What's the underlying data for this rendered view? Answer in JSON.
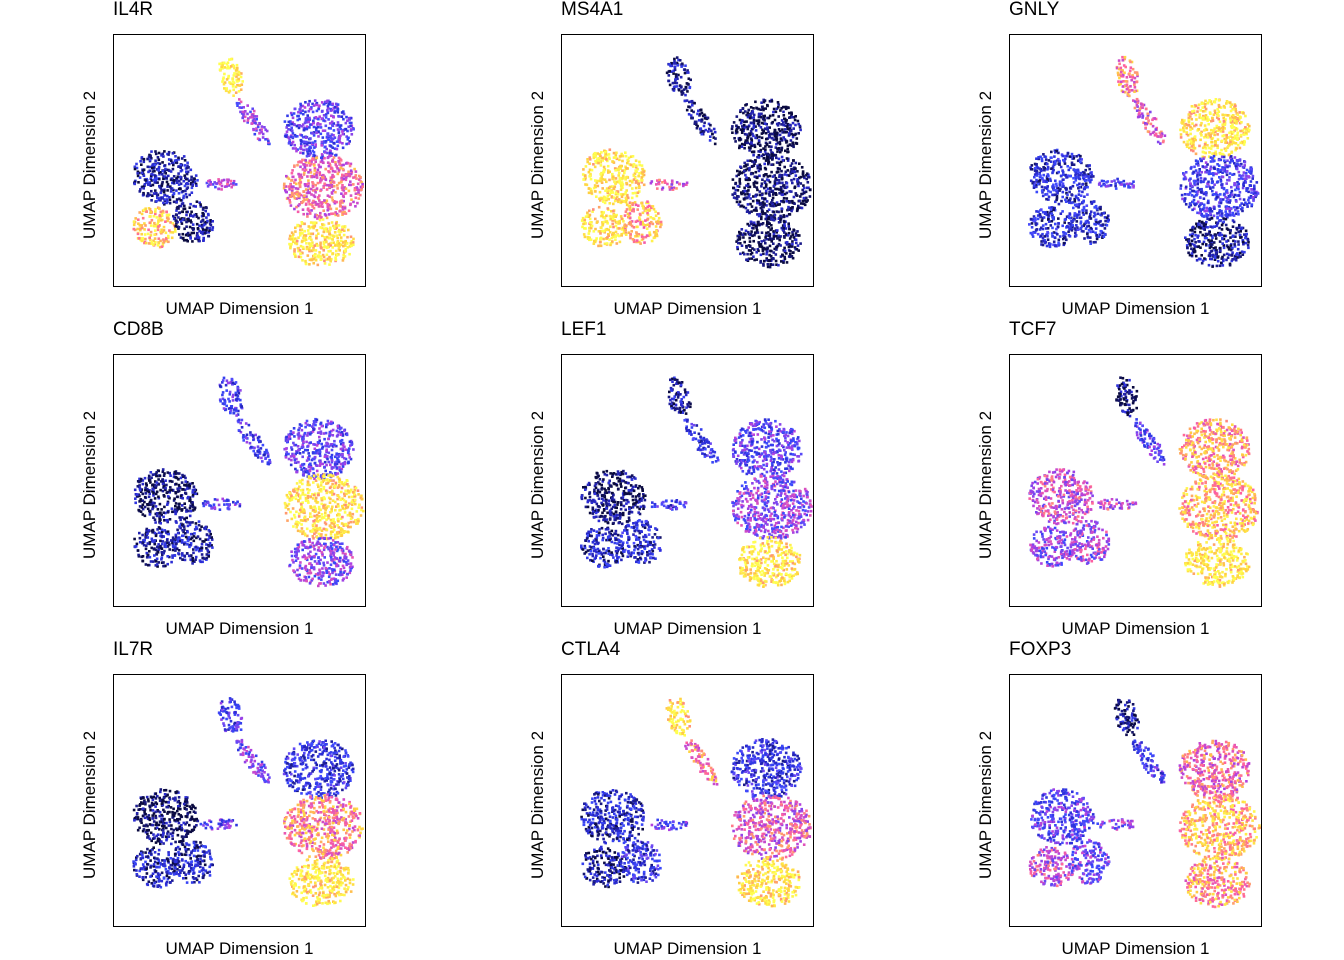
{
  "chart_data": [
    {
      "type": "scatter",
      "title": "IL4R",
      "xlabel": "UMAP Dimension 1",
      "ylabel": "UMAP Dimension 2",
      "grid": false,
      "colorscale": [
        "#0a0a40",
        "#2a2ad0",
        "#3c4cff",
        "#b040e0",
        "#ff60a0",
        "#ffd040",
        "#ffff50"
      ],
      "cluster_expression": {
        "top_left_lobe": 0.95,
        "top_left_arm": 0.45,
        "mid_left_lobe": 0.12,
        "left_lower_blob": 0.85,
        "left_lower_dark": 0.05,
        "bridge": 0.5,
        "right_upper": 0.35,
        "right_middle": 0.65,
        "right_lower": 0.9
      }
    },
    {
      "type": "scatter",
      "title": "MS4A1",
      "xlabel": "UMAP Dimension 1",
      "ylabel": "UMAP Dimension 2",
      "grid": false,
      "cluster_expression": {
        "top_left_lobe": 0.1,
        "top_left_arm": 0.1,
        "mid_left_lobe": 0.92,
        "left_lower_blob": 0.9,
        "left_lower_dark": 0.8,
        "bridge": 0.6,
        "right_upper": 0.02,
        "right_middle": 0.02,
        "right_lower": 0.02
      }
    },
    {
      "type": "scatter",
      "title": "GNLY",
      "xlabel": "UMAP Dimension 1",
      "ylabel": "UMAP Dimension 2",
      "grid": false,
      "cluster_expression": {
        "top_left_lobe": 0.7,
        "top_left_arm": 0.6,
        "mid_left_lobe": 0.2,
        "left_lower_blob": 0.2,
        "left_lower_dark": 0.2,
        "bridge": 0.3,
        "right_upper": 0.9,
        "right_middle": 0.3,
        "right_lower": 0.1
      }
    },
    {
      "type": "scatter",
      "title": "CD8B",
      "xlabel": "UMAP Dimension 1",
      "ylabel": "UMAP Dimension 2",
      "grid": false,
      "cluster_expression": {
        "top_left_lobe": 0.3,
        "top_left_arm": 0.3,
        "mid_left_lobe": 0.05,
        "left_lower_blob": 0.1,
        "left_lower_dark": 0.15,
        "bridge": 0.35,
        "right_upper": 0.35,
        "right_middle": 0.9,
        "right_lower": 0.45
      }
    },
    {
      "type": "scatter",
      "title": "LEF1",
      "xlabel": "UMAP Dimension 1",
      "ylabel": "UMAP Dimension 2",
      "grid": false,
      "cluster_expression": {
        "top_left_lobe": 0.1,
        "top_left_arm": 0.25,
        "mid_left_lobe": 0.05,
        "left_lower_blob": 0.15,
        "left_lower_dark": 0.2,
        "bridge": 0.3,
        "right_upper": 0.35,
        "right_middle": 0.45,
        "right_lower": 0.92
      }
    },
    {
      "type": "scatter",
      "title": "TCF7",
      "xlabel": "UMAP Dimension 1",
      "ylabel": "UMAP Dimension 2",
      "grid": false,
      "cluster_expression": {
        "top_left_lobe": 0.05,
        "top_left_arm": 0.35,
        "mid_left_lobe": 0.55,
        "left_lower_blob": 0.45,
        "left_lower_dark": 0.5,
        "bridge": 0.55,
        "right_upper": 0.75,
        "right_middle": 0.8,
        "right_lower": 0.92
      }
    },
    {
      "type": "scatter",
      "title": "IL7R",
      "xlabel": "UMAP Dimension 1",
      "ylabel": "UMAP Dimension 2",
      "grid": false,
      "cluster_expression": {
        "top_left_lobe": 0.3,
        "top_left_arm": 0.4,
        "mid_left_lobe": 0.02,
        "left_lower_blob": 0.15,
        "left_lower_dark": 0.15,
        "bridge": 0.35,
        "right_upper": 0.25,
        "right_middle": 0.7,
        "right_lower": 0.92
      }
    },
    {
      "type": "scatter",
      "title": "CTLA4",
      "xlabel": "UMAP Dimension 1",
      "ylabel": "UMAP Dimension 2",
      "grid": false,
      "cluster_expression": {
        "top_left_lobe": 0.9,
        "top_left_arm": 0.7,
        "mid_left_lobe": 0.15,
        "left_lower_blob": 0.1,
        "left_lower_dark": 0.25,
        "bridge": 0.35,
        "right_upper": 0.25,
        "right_middle": 0.6,
        "right_lower": 0.92
      }
    },
    {
      "type": "scatter",
      "title": "FOXP3",
      "xlabel": "UMAP Dimension 1",
      "ylabel": "UMAP Dimension 2",
      "grid": false,
      "cluster_expression": {
        "top_left_lobe": 0.1,
        "top_left_arm": 0.3,
        "mid_left_lobe": 0.35,
        "left_lower_blob": 0.55,
        "left_lower_dark": 0.4,
        "bridge": 0.45,
        "right_upper": 0.65,
        "right_middle": 0.8,
        "right_lower": 0.75
      }
    }
  ]
}
